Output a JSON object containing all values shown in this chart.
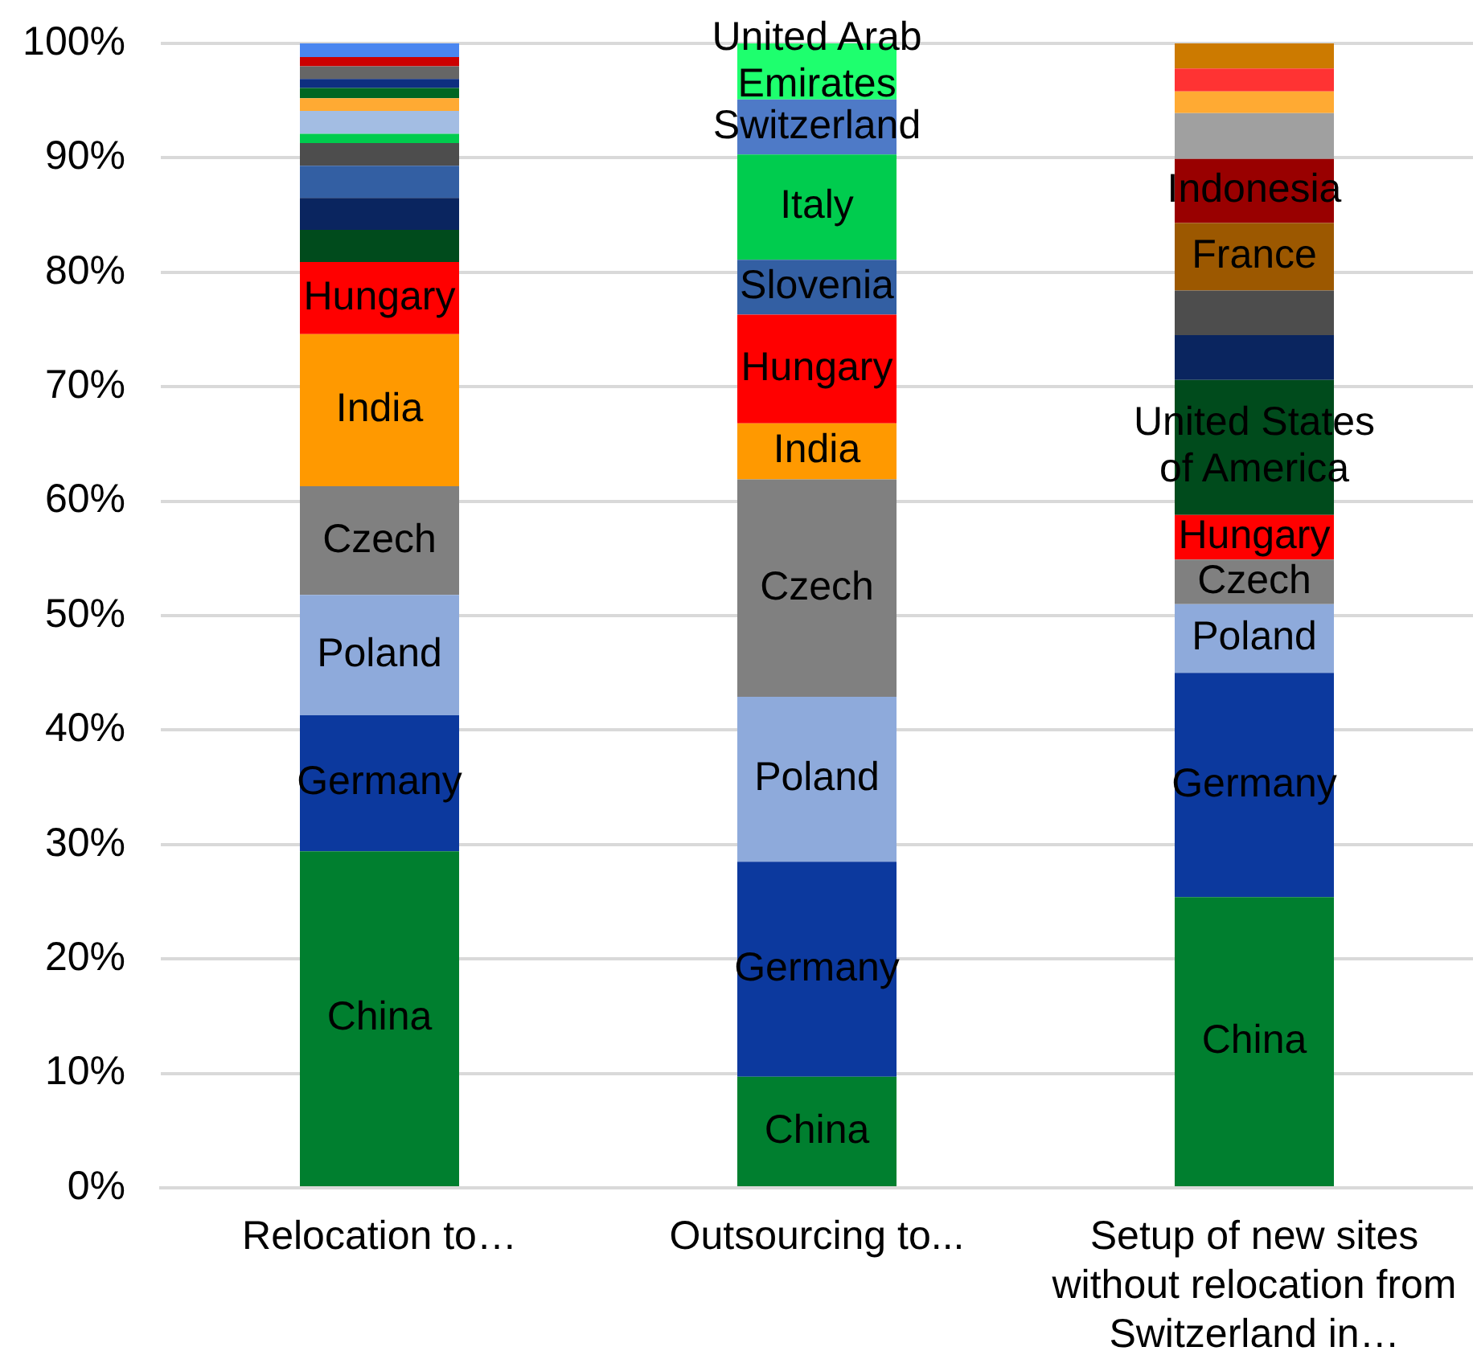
{
  "chart_data": {
    "type": "bar",
    "stacked": true,
    "grid": "y",
    "legend": false,
    "categories": [
      "Relocation to…",
      "Outsourcing to...",
      "Setup of new sites without relocation from Switzerland in…"
    ],
    "ylim": [
      0,
      100
    ],
    "yticks": [
      {
        "value": 0,
        "label": "0%"
      },
      {
        "value": 10,
        "label": "10%"
      },
      {
        "value": 20,
        "label": "20%"
      },
      {
        "value": 30,
        "label": "30%"
      },
      {
        "value": 40,
        "label": "40%"
      },
      {
        "value": 50,
        "label": "50%"
      },
      {
        "value": 60,
        "label": "60%"
      },
      {
        "value": 70,
        "label": "70%"
      },
      {
        "value": 80,
        "label": "80%"
      },
      {
        "value": 90,
        "label": "90%"
      },
      {
        "value": 100,
        "label": "100%"
      }
    ],
    "series": [
      {
        "color": "#007f2f",
        "values": [
          29.4,
          9.7,
          25.4
        ],
        "value_labels": [
          "China",
          "China",
          "China"
        ]
      },
      {
        "color": "#0c399e",
        "values": [
          11.9,
          18.8,
          19.6
        ],
        "value_labels": [
          "Germany",
          "Germany",
          "Germany"
        ]
      },
      {
        "color": "#8eaadb",
        "values": [
          10.5,
          14.4,
          6.0
        ],
        "value_labels": [
          "Poland",
          "Poland",
          "Poland"
        ]
      },
      {
        "color": "#808080",
        "values": [
          9.5,
          19.0,
          3.9
        ],
        "value_labels": [
          "Czech",
          "Czech",
          "Czech"
        ]
      },
      {
        "color": "#ff9900",
        "values": [
          13.3,
          4.9,
          null
        ],
        "value_labels": [
          "India",
          "India",
          null
        ]
      },
      {
        "color": "#ff0000",
        "values": [
          6.3,
          9.5,
          3.9
        ],
        "value_labels": [
          "Hungary",
          "Hungary",
          "Hungary"
        ]
      },
      {
        "color": "#004b1c",
        "values": [
          2.8,
          null,
          11.8
        ],
        "value_labels": [
          null,
          null,
          "United States of America"
        ]
      },
      {
        "color": "#0a255f",
        "values": [
          2.8,
          null,
          3.9
        ]
      },
      {
        "color": "#335fa3",
        "values": [
          2.8,
          4.8,
          null
        ],
        "value_labels": [
          null,
          "Slovenia",
          null
        ]
      },
      {
        "color": "#4d4d4d",
        "values": [
          2.0,
          null,
          3.9
        ]
      },
      {
        "color": "#00cc4e",
        "values": [
          0.8,
          9.2,
          null
        ],
        "value_labels": [
          null,
          "Italy",
          null
        ]
      },
      {
        "color": "#4e7ac7",
        "values": [
          null,
          4.8,
          null
        ],
        "value_labels": [
          null,
          "Switzerland",
          null
        ]
      },
      {
        "color": "#1eff6e",
        "values": [
          null,
          4.9,
          null
        ],
        "value_labels": [
          null,
          "United Arab Emirates",
          null
        ]
      },
      {
        "color": "#9c5800",
        "values": [
          null,
          null,
          5.9
        ],
        "value_labels": [
          null,
          null,
          "France"
        ]
      },
      {
        "color": "#990000",
        "values": [
          null,
          null,
          5.6
        ],
        "value_labels": [
          null,
          null,
          "Indonesia"
        ]
      },
      {
        "color": "#a3bde3",
        "values": [
          2.0,
          null,
          null
        ]
      },
      {
        "color": "#a0a0a0",
        "values": [
          null,
          null,
          4.0
        ]
      },
      {
        "color": "#ffaa33",
        "values": [
          1.1,
          null,
          1.9
        ]
      },
      {
        "color": "#006622",
        "values": [
          0.9,
          null,
          null
        ]
      },
      {
        "color": "#0e2f80",
        "values": [
          0.8,
          null,
          null
        ]
      },
      {
        "color": "#666666",
        "values": [
          1.1,
          null,
          null
        ]
      },
      {
        "color": "#cc0000",
        "values": [
          0.8,
          null,
          null
        ]
      },
      {
        "color": "#ff3333",
        "values": [
          null,
          null,
          2.0
        ]
      },
      {
        "color": "#4a86f0",
        "values": [
          1.2,
          null,
          null
        ]
      },
      {
        "color": "#cc7a00",
        "values": [
          null,
          null,
          2.2
        ]
      }
    ]
  }
}
